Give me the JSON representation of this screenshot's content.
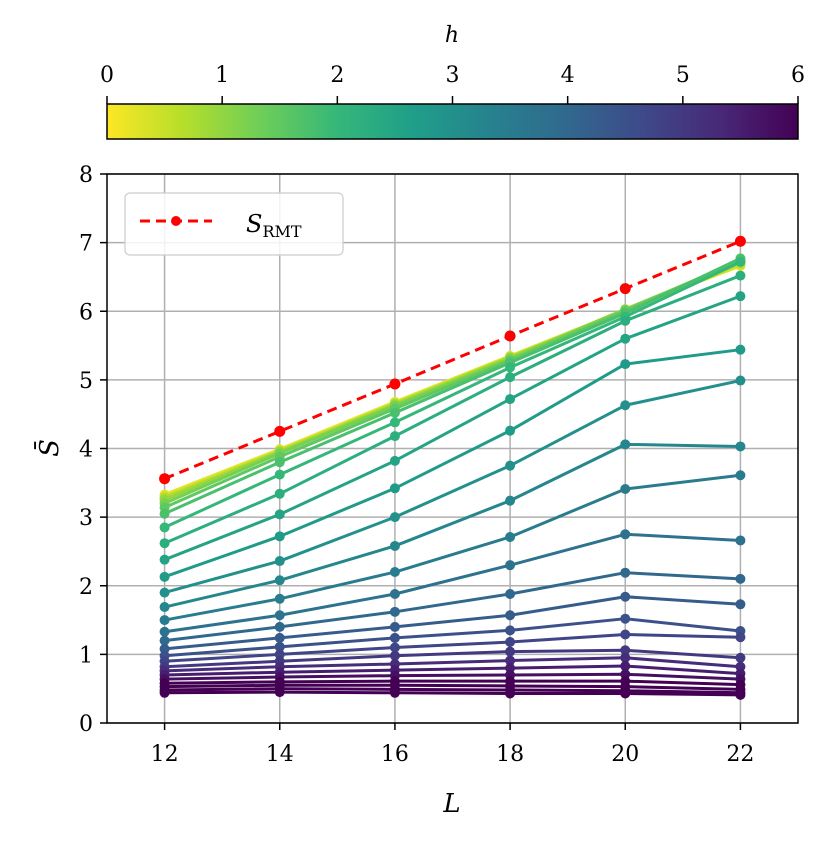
{
  "chart_data": {
    "type": "line",
    "xlabel": "L",
    "ylabel": "S̄",
    "x": [
      12,
      14,
      16,
      18,
      20,
      22
    ],
    "xlim": [
      11,
      23
    ],
    "ylim": [
      0,
      8
    ],
    "xticks": [
      "12",
      "14",
      "16",
      "18",
      "20",
      "22"
    ],
    "yticks": [
      "0",
      "1",
      "2",
      "3",
      "4",
      "5",
      "6",
      "7",
      "8"
    ],
    "grid": true,
    "legend": {
      "placement": "top-left",
      "entries": [
        {
          "label": "S",
          "subscript": "RMT",
          "color": "#ff0000",
          "style": "dashed"
        }
      ]
    },
    "colorbar": {
      "label": "h",
      "range": [
        0,
        6
      ],
      "ticks": [
        "0",
        "1",
        "2",
        "3",
        "4",
        "5",
        "6"
      ],
      "colormap": "viridis_r",
      "stops": [
        "#fde725",
        "#b5de2b",
        "#6ece58",
        "#35b779",
        "#1f9e89",
        "#26828e",
        "#31688e",
        "#3e4989",
        "#482878",
        "#440154"
      ]
    },
    "reference_series": {
      "name": "S_RMT",
      "color": "#ff0000",
      "values": [
        3.56,
        4.25,
        4.94,
        5.64,
        6.33,
        7.02
      ]
    },
    "series": [
      {
        "h": 0.25,
        "values": [
          3.33,
          3.99,
          4.68,
          5.35,
          6.02,
          6.66
        ]
      },
      {
        "h": 0.5,
        "values": [
          3.3,
          3.97,
          4.66,
          5.34,
          6.01,
          6.68
        ]
      },
      {
        "h": 0.75,
        "values": [
          3.28,
          3.96,
          4.65,
          5.33,
          6.02,
          6.7
        ]
      },
      {
        "h": 1.0,
        "values": [
          3.25,
          3.95,
          4.64,
          5.32,
          6.03,
          6.72
        ]
      },
      {
        "h": 1.25,
        "values": [
          3.2,
          3.93,
          4.62,
          5.3,
          6.02,
          6.74
        ]
      },
      {
        "h": 1.5,
        "values": [
          3.14,
          3.88,
          4.58,
          5.28,
          6.0,
          6.75
        ]
      },
      {
        "h": 1.75,
        "values": [
          3.05,
          3.8,
          4.52,
          5.25,
          5.97,
          6.77
        ]
      },
      {
        "h": 2.0,
        "values": [
          2.85,
          3.62,
          4.38,
          5.18,
          5.92,
          6.72
        ]
      },
      {
        "h": 2.25,
        "values": [
          2.62,
          3.34,
          4.18,
          5.04,
          5.86,
          6.52
        ]
      },
      {
        "h": 2.5,
        "values": [
          2.38,
          3.04,
          3.82,
          4.72,
          5.6,
          6.22
        ]
      },
      {
        "h": 2.75,
        "values": [
          2.13,
          2.72,
          3.42,
          4.26,
          5.23,
          5.44
        ]
      },
      {
        "h": 3.0,
        "values": [
          1.9,
          2.36,
          3.0,
          3.75,
          4.63,
          4.99
        ]
      },
      {
        "h": 3.25,
        "values": [
          1.69,
          2.08,
          2.58,
          3.24,
          4.06,
          4.03
        ]
      },
      {
        "h": 3.5,
        "values": [
          1.5,
          1.81,
          2.2,
          2.71,
          3.41,
          3.61
        ]
      },
      {
        "h": 3.75,
        "values": [
          1.33,
          1.57,
          1.88,
          2.3,
          2.75,
          2.66
        ]
      },
      {
        "h": 4.0,
        "values": [
          1.2,
          1.4,
          1.62,
          1.88,
          2.19,
          2.1
        ]
      },
      {
        "h": 4.25,
        "values": [
          1.08,
          1.24,
          1.4,
          1.57,
          1.84,
          1.73
        ]
      },
      {
        "h": 4.5,
        "values": [
          0.98,
          1.11,
          1.24,
          1.35,
          1.52,
          1.34
        ]
      },
      {
        "h": 4.75,
        "values": [
          0.9,
          1.0,
          1.1,
          1.18,
          1.29,
          1.25
        ]
      },
      {
        "h": 5.0,
        "values": [
          0.82,
          0.9,
          0.98,
          1.04,
          1.06,
          0.95
        ]
      },
      {
        "h": 5.25,
        "values": [
          0.76,
          0.82,
          0.86,
          0.91,
          0.95,
          0.82
        ]
      },
      {
        "h": 5.5,
        "values": [
          0.7,
          0.74,
          0.77,
          0.8,
          0.83,
          0.72
        ]
      },
      {
        "h": 5.75,
        "values": [
          0.64,
          0.67,
          0.69,
          0.7,
          0.71,
          0.64
        ]
      },
      {
        "h": 6.0,
        "values": [
          0.58,
          0.6,
          0.61,
          0.61,
          0.61,
          0.56
        ]
      },
      {
        "h": 6.25,
        "values": [
          0.53,
          0.55,
          0.55,
          0.54,
          0.53,
          0.49
        ]
      },
      {
        "h": 6.5,
        "values": [
          0.48,
          0.5,
          0.49,
          0.48,
          0.47,
          0.44
        ]
      },
      {
        "h": 6.75,
        "values": [
          0.44,
          0.45,
          0.44,
          0.43,
          0.43,
          0.41
        ]
      }
    ]
  }
}
